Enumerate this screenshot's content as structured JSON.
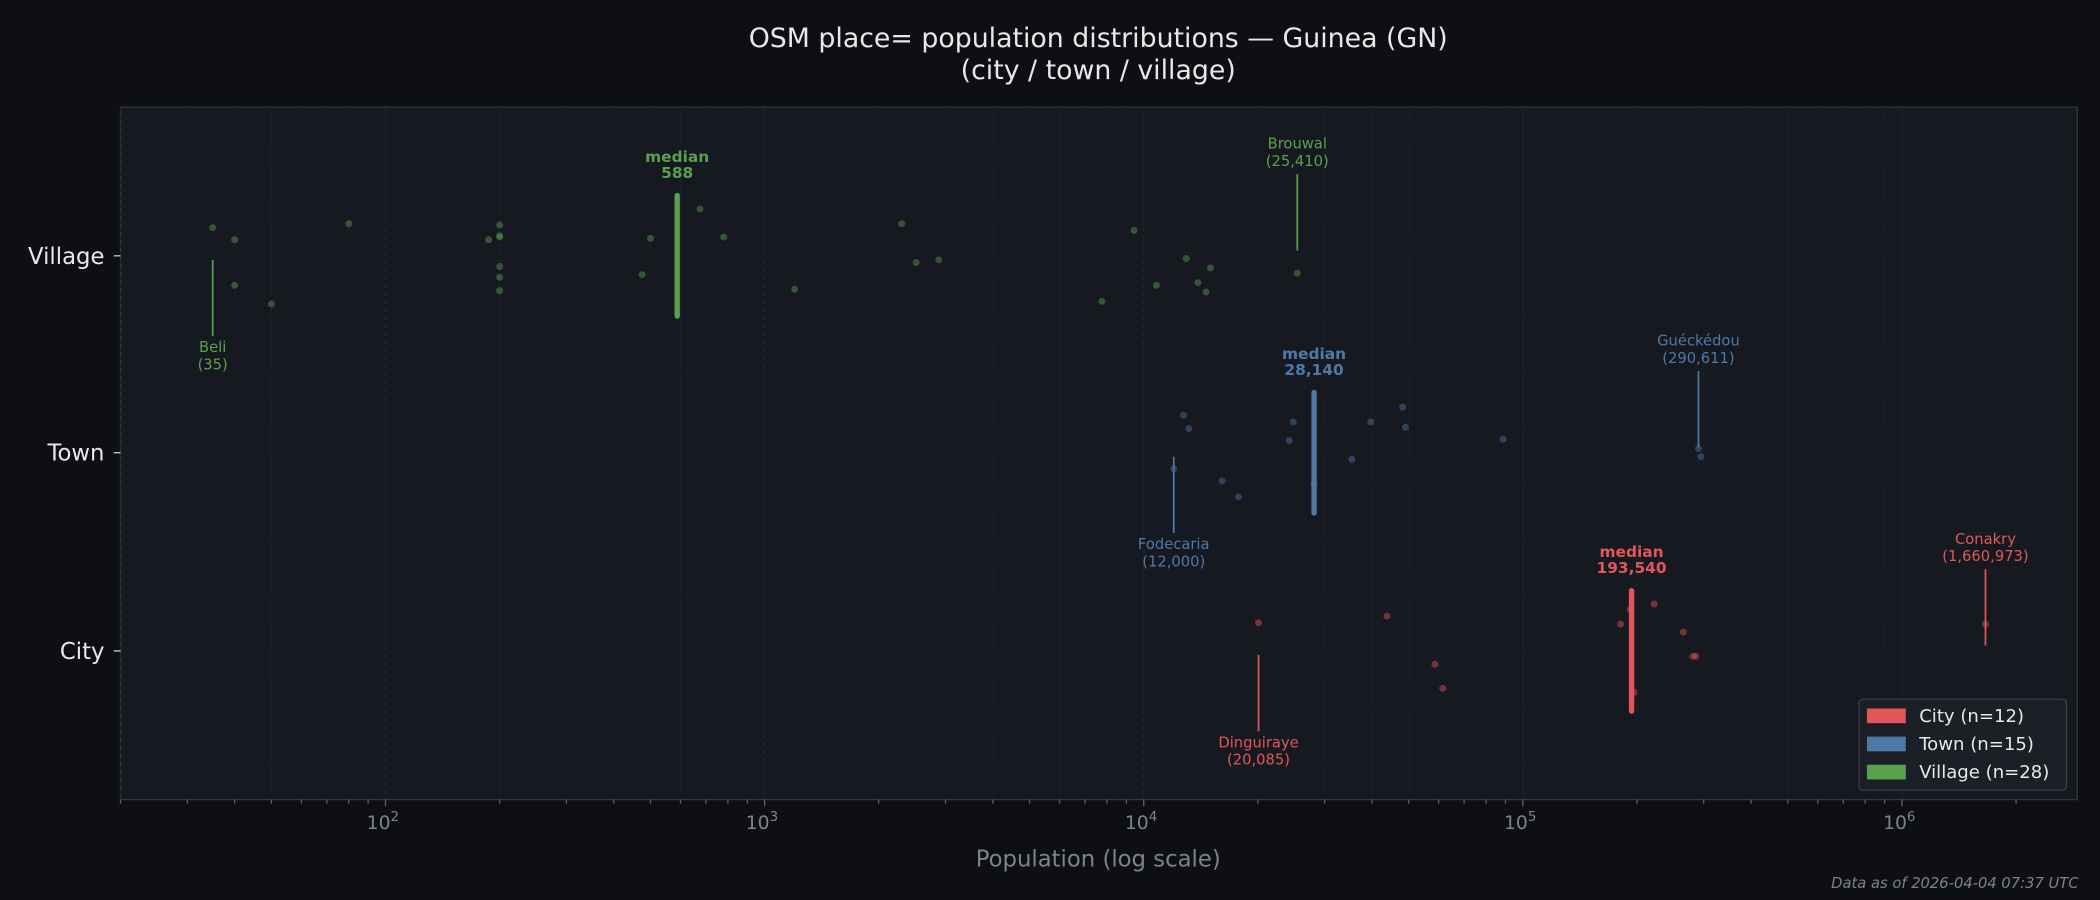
{
  "chart_data": {
    "type": "scatter",
    "title": "OSM place= population distributions — Guinea (GN)",
    "subtitle": "(city / town / village)",
    "xlabel": "Population (log scale)",
    "ylabel": "",
    "xscale": "log",
    "xlim": [
      20,
      2900000
    ],
    "x_ticks": [
      {
        "value": 100,
        "label": "10",
        "exp": "2"
      },
      {
        "value": 1000,
        "label": "10",
        "exp": "3"
      },
      {
        "value": 10000,
        "label": "10",
        "exp": "4"
      },
      {
        "value": 100000,
        "label": "10",
        "exp": "5"
      },
      {
        "value": 1000000,
        "label": "10",
        "exp": "6"
      }
    ],
    "categories": [
      "City",
      "Town",
      "Village"
    ],
    "grid": "vertical minor, dashed",
    "legend_position": "lower-right",
    "series": [
      {
        "name": "City",
        "legend": "City  (n=12)",
        "color": "#e15759",
        "values": [
          20085,
          43800,
          58600,
          61500,
          181000,
          191900,
          196500,
          222000,
          265000,
          281000,
          286000,
          1660973
        ],
        "median": 193540,
        "median_label": "median",
        "median_value_label": "193,540",
        "annotations": [
          {
            "name": "Dinguiraye",
            "value": 20085,
            "value_label": "(20,085)",
            "side": "below"
          },
          {
            "name": "Conakry",
            "value": 1660973,
            "value_label": "(1,660,973)",
            "side": "above"
          }
        ]
      },
      {
        "name": "Town",
        "legend": "Town  (n=15)",
        "color": "#4e79a7",
        "values": [
          12000,
          12730,
          13150,
          16100,
          17780,
          24200,
          24800,
          28140,
          35400,
          39700,
          48200,
          49000,
          88700,
          290611,
          295000
        ],
        "median": 28140,
        "median_label": "median",
        "median_value_label": "28,140",
        "annotations": [
          {
            "name": "Fodecaria",
            "value": 12000,
            "value_label": "(12,000)",
            "side": "below"
          },
          {
            "name": "Guéckédou",
            "value": 290611,
            "value_label": "(290,611)",
            "side": "above"
          }
        ]
      },
      {
        "name": "Village",
        "legend": "Village  (n=28)",
        "color": "#59a14f",
        "values": [
          35,
          40,
          40,
          50,
          80,
          187,
          200,
          200,
          200,
          200,
          200,
          200,
          475,
          500,
          675,
          780,
          1200,
          2300,
          2510,
          2880,
          7760,
          9430,
          10800,
          12950,
          13900,
          15000,
          14600,
          25410
        ],
        "median": 588,
        "median_label": "median",
        "median_value_label": "588",
        "annotations": [
          {
            "name": "Beli",
            "value": 35,
            "value_label": "(35)",
            "side": "below"
          },
          {
            "name": "Brouwal",
            "value": 25410,
            "value_label": "(25,410)",
            "side": "above"
          }
        ]
      }
    ]
  },
  "footer": {
    "data_as_of": "Data as of 2026-04-04 07:37 UTC"
  }
}
